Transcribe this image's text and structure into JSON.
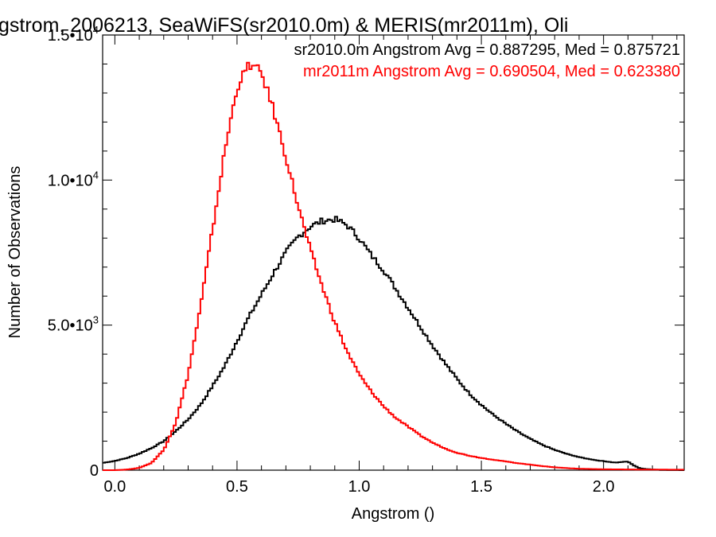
{
  "chart_data": {
    "type": "line",
    "title": "gstrom, 2006213, SeaWiFS(sr2010.0m) & MERIS(mr2011m), Oli",
    "xlabel": "Angstrom ()",
    "ylabel": "Number of Observations",
    "xlim": [
      -0.05,
      2.33
    ],
    "ylim": [
      0,
      15000
    ],
    "grid": false,
    "step": true,
    "x_ticks": [
      0.0,
      0.5,
      1.0,
      1.5,
      2.0
    ],
    "x_tick_labels": [
      "0.0",
      "0.5",
      "1.0",
      "1.5",
      "2.0"
    ],
    "y_ticks": [
      0,
      5000,
      10000,
      15000
    ],
    "y_tick_labels": [
      {
        "mantissa": "0",
        "exp": ""
      },
      {
        "mantissa": "5.0•10",
        "exp": "3"
      },
      {
        "mantissa": "1.0•10",
        "exp": "4"
      },
      {
        "mantissa": "1.5•10",
        "exp": "4"
      }
    ],
    "series": [
      {
        "name": "sr2010.0m",
        "color": "#000000",
        "annotation": "sr2010.0m Angstrom Avg = 0.887295, Med = 0.875721",
        "points": [
          [
            -0.05,
            250
          ],
          [
            0.0,
            320
          ],
          [
            0.05,
            420
          ],
          [
            0.1,
            570
          ],
          [
            0.15,
            760
          ],
          [
            0.2,
            1000
          ],
          [
            0.25,
            1350
          ],
          [
            0.3,
            1750
          ],
          [
            0.35,
            2250
          ],
          [
            0.4,
            2900
          ],
          [
            0.45,
            3600
          ],
          [
            0.5,
            4450
          ],
          [
            0.55,
            5300
          ],
          [
            0.6,
            6050
          ],
          [
            0.65,
            6800
          ],
          [
            0.7,
            7500
          ],
          [
            0.75,
            8050
          ],
          [
            0.8,
            8400
          ],
          [
            0.85,
            8600
          ],
          [
            0.9,
            8650
          ],
          [
            0.95,
            8450
          ],
          [
            1.0,
            8000
          ],
          [
            1.05,
            7400
          ],
          [
            1.1,
            6900
          ],
          [
            1.15,
            6250
          ],
          [
            1.2,
            5600
          ],
          [
            1.25,
            4950
          ],
          [
            1.3,
            4300
          ],
          [
            1.35,
            3700
          ],
          [
            1.4,
            3150
          ],
          [
            1.45,
            2650
          ],
          [
            1.5,
            2250
          ],
          [
            1.55,
            1900
          ],
          [
            1.6,
            1600
          ],
          [
            1.65,
            1320
          ],
          [
            1.7,
            1080
          ],
          [
            1.75,
            870
          ],
          [
            1.8,
            700
          ],
          [
            1.85,
            560
          ],
          [
            1.9,
            450
          ],
          [
            1.95,
            370
          ],
          [
            2.0,
            310
          ],
          [
            2.05,
            260
          ],
          [
            2.1,
            300
          ],
          [
            2.12,
            180
          ],
          [
            2.15,
            60
          ],
          [
            2.2,
            20
          ],
          [
            2.25,
            5
          ],
          [
            2.33,
            0
          ]
        ]
      },
      {
        "name": "mr2011m",
        "color": "#ff0000",
        "annotation": "mr2011m Angstrom Avg = 0.690504, Med = 0.623380",
        "points": [
          [
            -0.05,
            0
          ],
          [
            0.0,
            0
          ],
          [
            0.05,
            20
          ],
          [
            0.1,
            80
          ],
          [
            0.15,
            250
          ],
          [
            0.2,
            700
          ],
          [
            0.25,
            1650
          ],
          [
            0.3,
            3300
          ],
          [
            0.35,
            5600
          ],
          [
            0.4,
            8300
          ],
          [
            0.45,
            11000
          ],
          [
            0.5,
            13200
          ],
          [
            0.55,
            14000
          ],
          [
            0.6,
            13700
          ],
          [
            0.65,
            12400
          ],
          [
            0.7,
            10800
          ],
          [
            0.75,
            9100
          ],
          [
            0.8,
            7600
          ],
          [
            0.85,
            6300
          ],
          [
            0.9,
            5100
          ],
          [
            0.95,
            4100
          ],
          [
            1.0,
            3300
          ],
          [
            1.05,
            2700
          ],
          [
            1.1,
            2200
          ],
          [
            1.15,
            1800
          ],
          [
            1.2,
            1500
          ],
          [
            1.25,
            1200
          ],
          [
            1.3,
            950
          ],
          [
            1.35,
            750
          ],
          [
            1.4,
            600
          ],
          [
            1.45,
            500
          ],
          [
            1.5,
            420
          ],
          [
            1.55,
            360
          ],
          [
            1.6,
            300
          ],
          [
            1.65,
            240
          ],
          [
            1.7,
            190
          ],
          [
            1.75,
            140
          ],
          [
            1.8,
            100
          ],
          [
            1.85,
            70
          ],
          [
            1.9,
            50
          ],
          [
            1.95,
            40
          ],
          [
            2.0,
            30
          ],
          [
            2.1,
            25
          ],
          [
            2.2,
            20
          ],
          [
            2.33,
            15
          ]
        ]
      }
    ]
  }
}
